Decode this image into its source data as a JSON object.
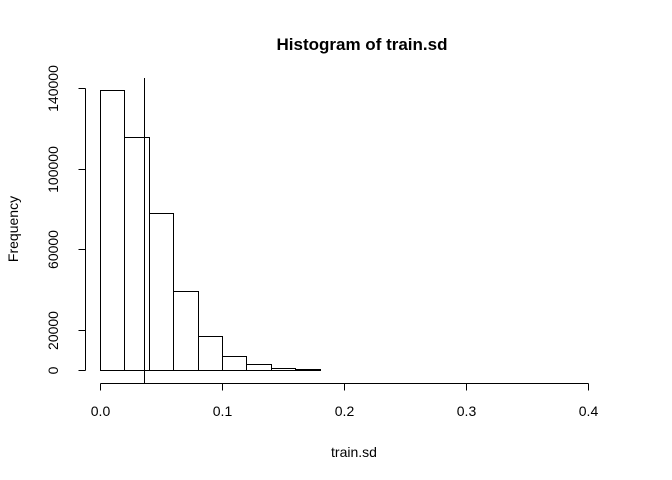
{
  "chart_data": {
    "type": "bar",
    "title": "Histogram of train.sd",
    "xlabel": "train.sd",
    "ylabel": "Frequency",
    "xlim": [
      0,
      0.42
    ],
    "ylim": [
      0,
      140000
    ],
    "x_ticks": [
      0.0,
      0.1,
      0.2,
      0.3,
      0.4
    ],
    "x_tick_labels": [
      "0.0",
      "0.1",
      "0.2",
      "0.3",
      "0.4"
    ],
    "y_ticks": [
      0,
      20000,
      60000,
      100000,
      140000
    ],
    "y_tick_labels": [
      "0",
      "20000",
      "60000",
      "100000",
      "140000"
    ],
    "bin_edges": [
      0.0,
      0.02,
      0.04,
      0.06,
      0.08,
      0.1,
      0.12,
      0.14,
      0.16,
      0.18,
      0.2,
      0.22,
      0.24,
      0.26,
      0.28,
      0.3,
      0.32,
      0.34,
      0.36,
      0.38,
      0.4,
      0.42
    ],
    "values": [
      139000,
      115500,
      78000,
      39000,
      17000,
      6800,
      2800,
      1100,
      300,
      100,
      50,
      30,
      20,
      10,
      10,
      5,
      5,
      3,
      2,
      1,
      1
    ],
    "reference_line_x": 0.036,
    "grid": false,
    "legend": "none"
  }
}
